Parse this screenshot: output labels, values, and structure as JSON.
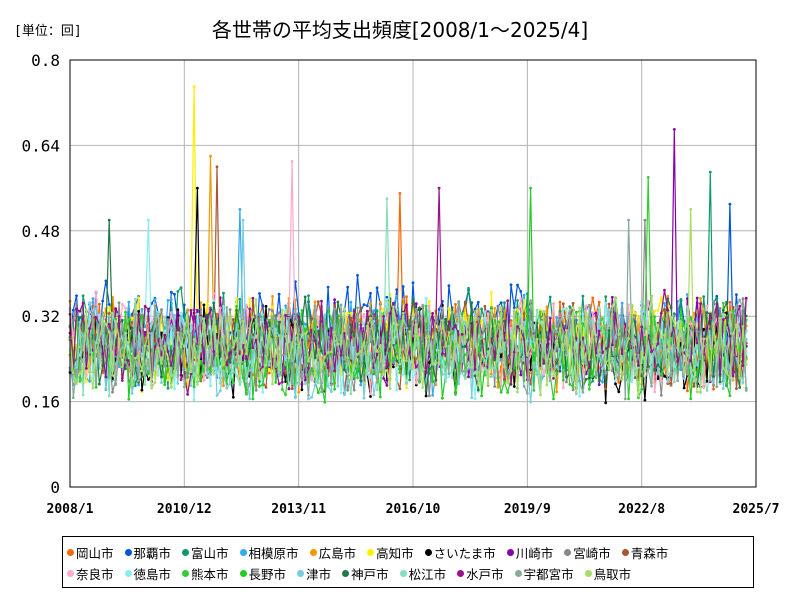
{
  "unit_label": "[単位：回]",
  "title": "各世帯の平均支出頻度[2008/1～2025/4]",
  "chart_data": {
    "type": "line",
    "title": "各世帯の平均支出頻度[2008/1～2025/4]",
    "unit": "回",
    "ylim": [
      0,
      0.8
    ],
    "yticks": [
      "0",
      "0.16",
      "0.32",
      "0.48",
      "0.64",
      "0.8"
    ],
    "xticks": [
      "2008/1",
      "2010/12",
      "2013/11",
      "2016/10",
      "2019/9",
      "2022/8",
      "2025/7"
    ],
    "x_range": [
      "2008/1",
      "2025/7"
    ],
    "x_last": "2025/4",
    "grid": true,
    "legend_position": "bottom",
    "series": [
      {
        "name": "岡山市",
        "color": "#ff6600",
        "base": 0.27,
        "spread": 0.07,
        "peak": [
          "2016/6",
          0.55
        ]
      },
      {
        "name": "那覇市",
        "color": "#0055dd",
        "base": 0.3,
        "spread": 0.07,
        "peak": [
          "2024/11",
          0.53
        ]
      },
      {
        "name": "富山市",
        "color": "#109a6a",
        "base": 0.28,
        "spread": 0.07,
        "peak": [
          "2024/5",
          0.59
        ]
      },
      {
        "name": "相模原市",
        "color": "#33aaee",
        "base": 0.27,
        "spread": 0.07,
        "peak": [
          "2012/5",
          0.52
        ]
      },
      {
        "name": "広島市",
        "color": "#ee9a00",
        "base": 0.27,
        "spread": 0.07,
        "peak": [
          "2011/8",
          0.62
        ]
      },
      {
        "name": "高知市",
        "color": "#ffee00",
        "base": 0.27,
        "spread": 0.07,
        "peak": [
          "2011/3",
          0.75
        ]
      },
      {
        "name": "さいたま市",
        "color": "#000000",
        "base": 0.25,
        "spread": 0.07,
        "peak": [
          "2011/4",
          0.56
        ]
      },
      {
        "name": "川崎市",
        "color": "#8800aa",
        "base": 0.27,
        "spread": 0.07,
        "peak": [
          "2023/6",
          0.67
        ]
      },
      {
        "name": "宮崎市",
        "color": "#888888",
        "base": 0.26,
        "spread": 0.07,
        "peak": [
          "2022/9",
          0.5
        ]
      },
      {
        "name": "青森市",
        "color": "#aa5533",
        "base": 0.27,
        "spread": 0.07,
        "peak": [
          "2011/10",
          0.6
        ]
      },
      {
        "name": "奈良市",
        "color": "#ffaacc",
        "base": 0.27,
        "spread": 0.07,
        "peak": [
          "2013/9",
          0.61
        ]
      },
      {
        "name": "徳島市",
        "color": "#88eeee",
        "base": 0.26,
        "spread": 0.07,
        "peak": [
          "2010/1",
          0.5
        ]
      },
      {
        "name": "熊本市",
        "color": "#33cc33",
        "base": 0.26,
        "spread": 0.07,
        "peak": [
          "2022/10",
          0.58
        ]
      },
      {
        "name": "長野市",
        "color": "#22cc22",
        "base": 0.25,
        "spread": 0.07,
        "peak": [
          "2019/10",
          0.56
        ]
      },
      {
        "name": "津市",
        "color": "#77ccdd",
        "base": 0.25,
        "spread": 0.07,
        "peak": [
          "2012/6",
          0.5
        ]
      },
      {
        "name": "神戸市",
        "color": "#227744",
        "base": 0.27,
        "spread": 0.07,
        "peak": [
          "2009/1",
          0.5
        ]
      },
      {
        "name": "松江市",
        "color": "#88ddbb",
        "base": 0.26,
        "spread": 0.07,
        "peak": [
          "2016/2",
          0.54
        ]
      },
      {
        "name": "水戸市",
        "color": "#991188",
        "base": 0.27,
        "spread": 0.07,
        "peak": [
          "2017/6",
          0.56
        ]
      },
      {
        "name": "宇都宮市",
        "color": "#88aa99",
        "base": 0.26,
        "spread": 0.07,
        "peak": [
          "2022/4",
          0.5
        ]
      },
      {
        "name": "鳥取市",
        "color": "#aadd66",
        "base": 0.26,
        "spread": 0.07,
        "peak": [
          "2023/11",
          0.52
        ]
      }
    ]
  }
}
